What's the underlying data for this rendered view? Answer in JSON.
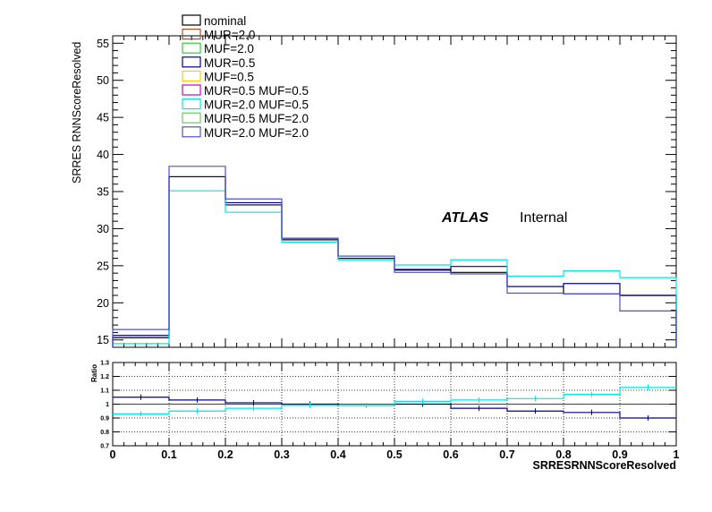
{
  "chart_data": [
    {
      "type": "line",
      "ylabel": "SRRES RNNScoreResolved",
      "ylim": [
        14,
        56
      ],
      "xlim": [
        0,
        1
      ],
      "y_ticks": [
        "15",
        "20",
        "25",
        "30",
        "35",
        "40",
        "45",
        "50",
        "55"
      ],
      "bin_edges": [
        0,
        0.1,
        0.2,
        0.3,
        0.4,
        0.5,
        0.6,
        0.7,
        0.8,
        0.9,
        1.0
      ],
      "legend": {
        "placement": "top-left",
        "entries": [
          {
            "name": "nominal",
            "color": "#000000"
          },
          {
            "name": "MUR=2.0",
            "color": "#a0522d"
          },
          {
            "name": "MUF=2.0",
            "color": "#33cc33"
          },
          {
            "name": "MUR=0.5",
            "color": "#00008b"
          },
          {
            "name": "MUF=0.5",
            "color": "#ffcc00"
          },
          {
            "name": "MUR=0.5 MUF=0.5",
            "color": "#cc00cc"
          },
          {
            "name": "MUR=2.0 MUF=0.5",
            "color": "#00e5e5"
          },
          {
            "name": "MUR=0.5 MUF=2.0",
            "color": "#66cc66"
          },
          {
            "name": "MUR=2.0 MUF=2.0",
            "color": "#5050c8"
          }
        ]
      },
      "annotation": {
        "bold": "ATLAS",
        "normal": "Internal"
      },
      "series": [
        {
          "name": "nominal",
          "color": "#000000",
          "values": [
            15.3,
            37.0,
            33.2,
            28.5,
            26.0,
            24.4,
            24.1,
            22.2,
            21.2,
            21.0
          ]
        },
        {
          "name": "MUR=0.5",
          "color": "#00008b",
          "values": [
            15.6,
            37.0,
            33.5,
            28.7,
            26.3,
            24.5,
            24.9,
            22.2,
            22.6,
            21.0
          ]
        },
        {
          "name": "MUR=2.0 MUF=0.5",
          "color": "#00e5e5",
          "values": [
            14.5,
            35.1,
            32.2,
            28.2,
            25.8,
            25.1,
            25.8,
            23.6,
            24.3,
            23.4
          ]
        },
        {
          "name": "MUR=2.0 MUF=2.0",
          "color": "#5050c8",
          "values": [
            16.4,
            38.4,
            34.0,
            28.7,
            26.3,
            24.1,
            23.9,
            21.3,
            21.2,
            18.9
          ]
        }
      ]
    },
    {
      "type": "line",
      "ylabel": "Ratio",
      "xlabel": "SRRESRNNScoreResolved",
      "ylim": [
        0.7,
        1.3
      ],
      "xlim": [
        0,
        1
      ],
      "y_ticks": [
        "0.7",
        "0.8",
        "0.9",
        "1",
        "1.1",
        "1.2",
        "1.3"
      ],
      "x_ticks": [
        "0",
        "0.1",
        "0.2",
        "0.3",
        "0.4",
        "0.5",
        "0.6",
        "0.7",
        "0.8",
        "0.9",
        "1"
      ],
      "bin_edges": [
        0,
        0.1,
        0.2,
        0.3,
        0.4,
        0.5,
        0.6,
        0.7,
        0.8,
        0.9,
        1.0
      ],
      "series": [
        {
          "name": "MUR=0.5",
          "color": "#00008b",
          "values": [
            1.05,
            1.03,
            1.01,
            1.0,
            0.99,
            1.0,
            0.97,
            0.95,
            0.94,
            0.9
          ]
        },
        {
          "name": "MUR=2.0 MUF=0.5",
          "color": "#00e5e5",
          "values": [
            0.93,
            0.95,
            0.97,
            0.99,
            0.99,
            1.02,
            1.03,
            1.04,
            1.07,
            1.12
          ]
        }
      ]
    }
  ]
}
